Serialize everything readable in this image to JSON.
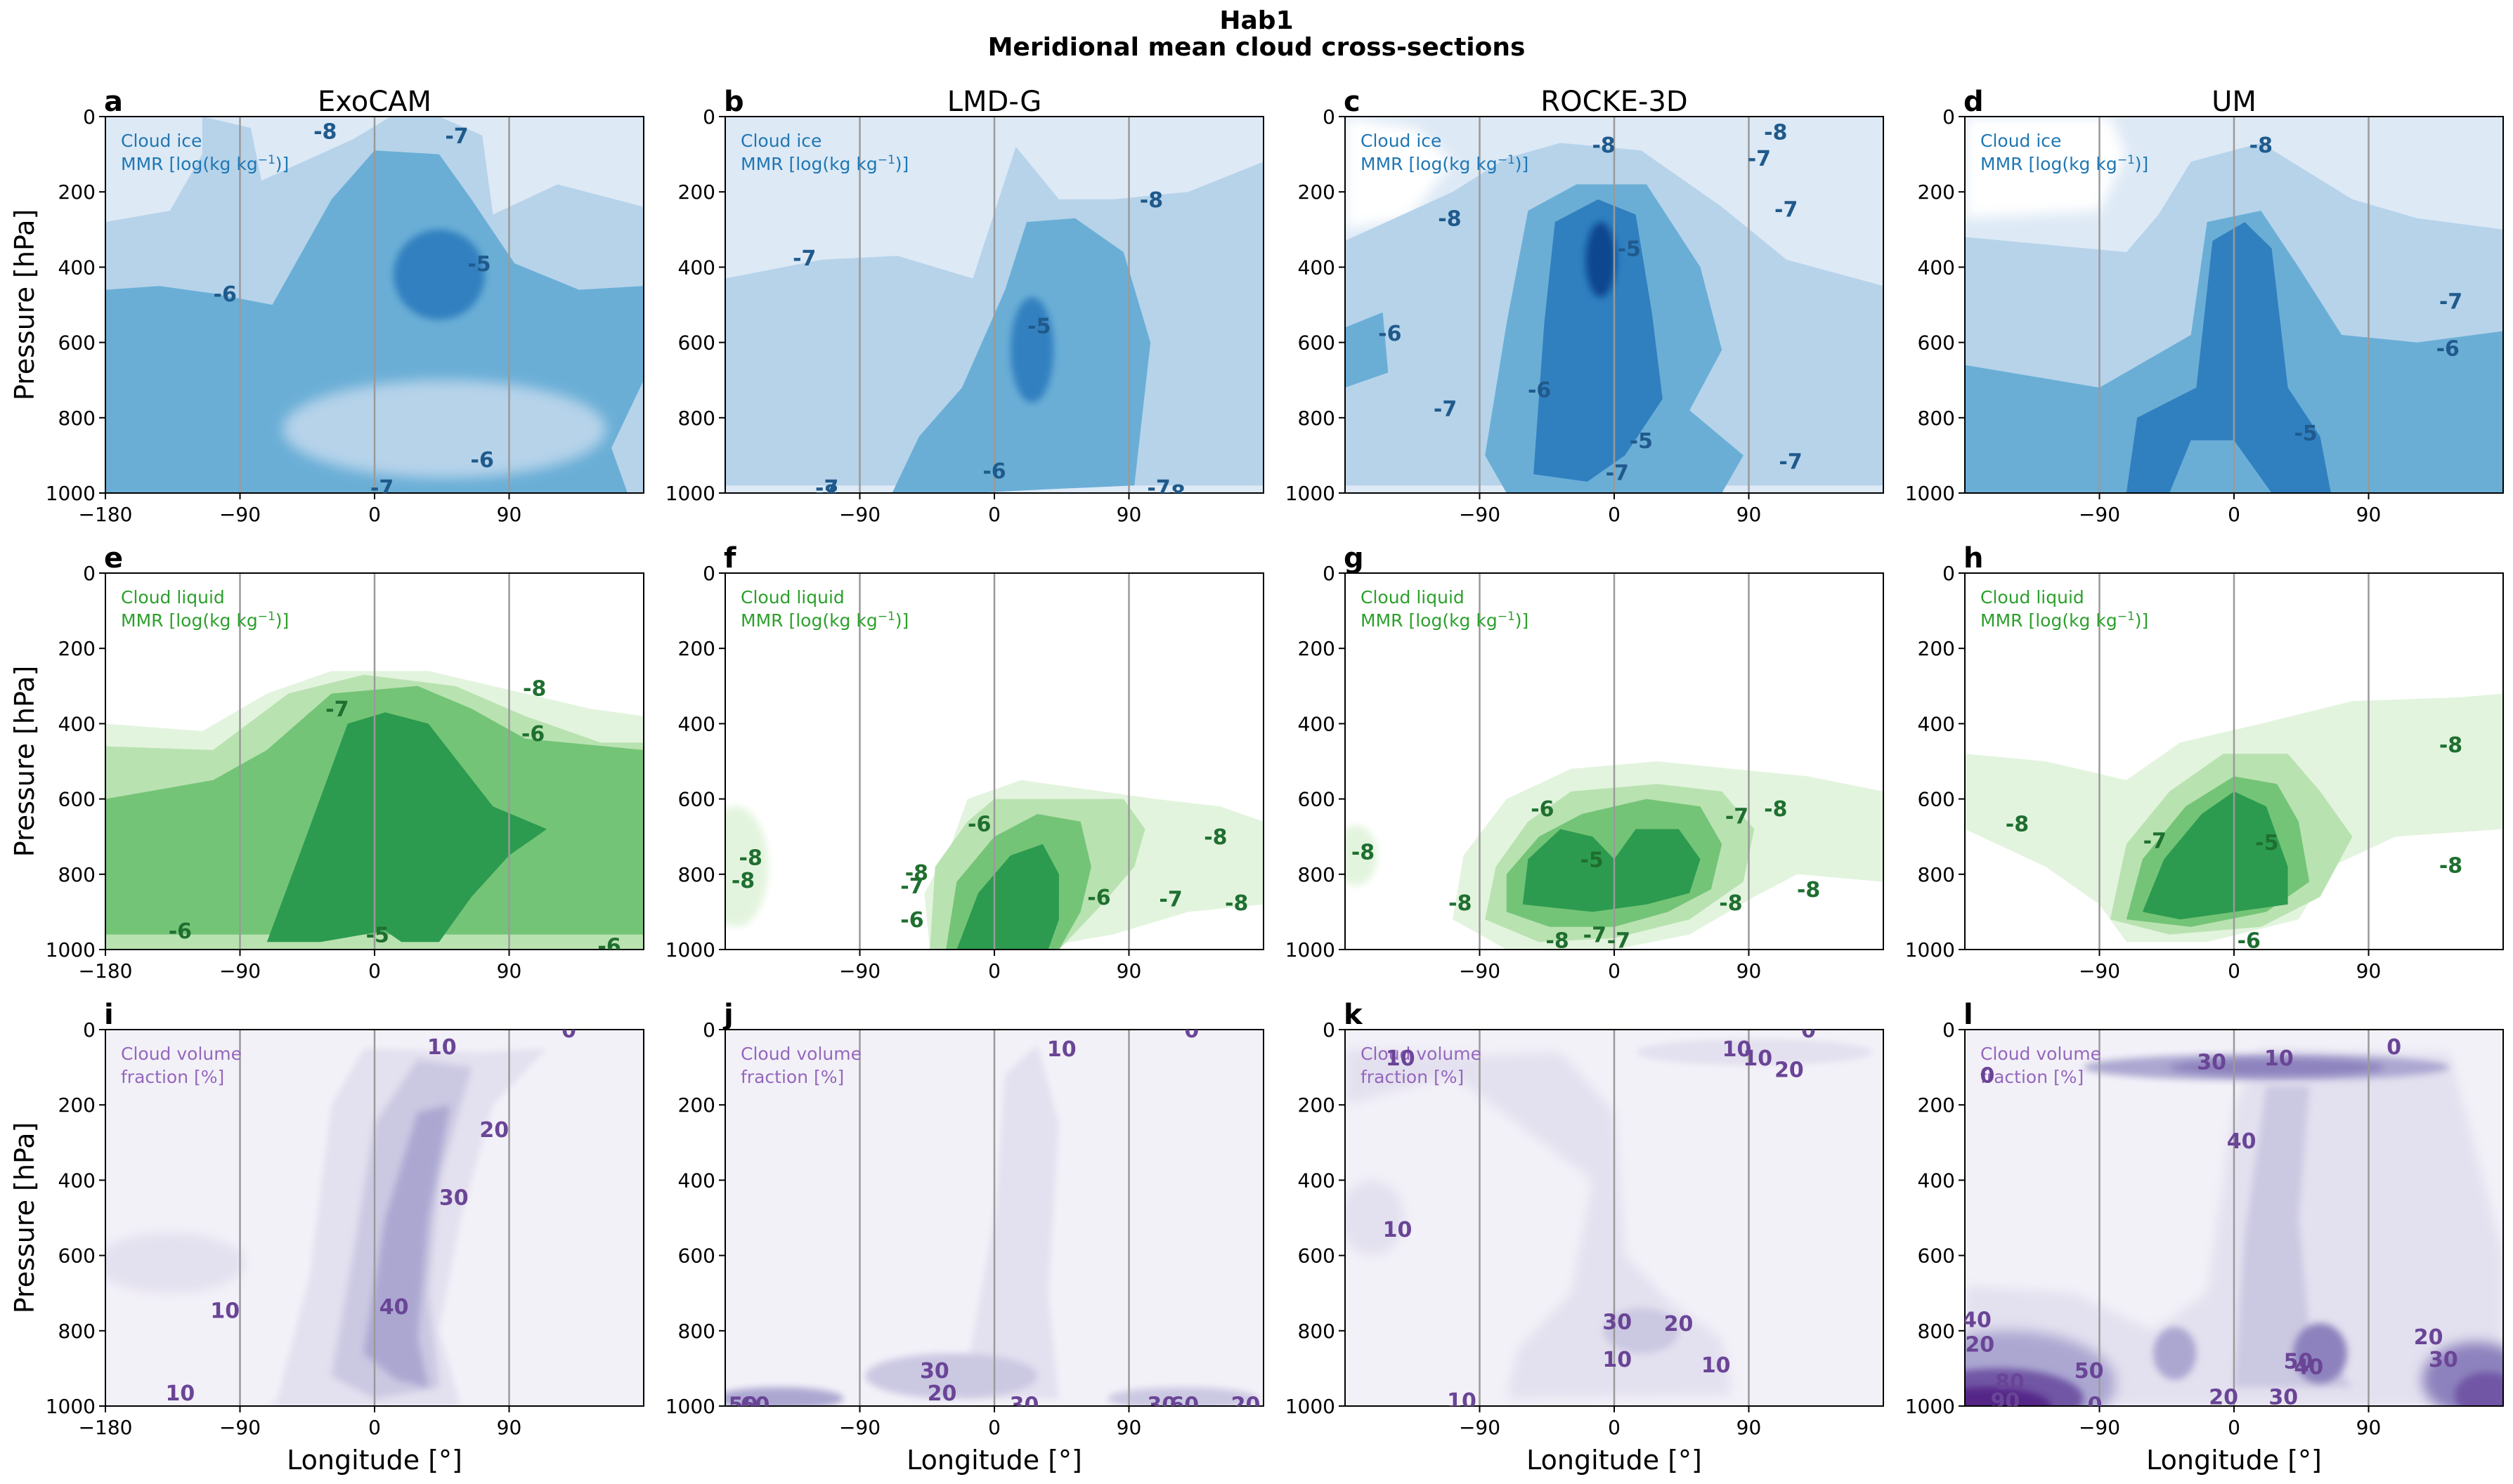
{
  "figure": {
    "title_line1": "Hab1",
    "title_line2": "Meridional mean cloud cross-sections"
  },
  "colors": {
    "ice": [
      "#dde9f5",
      "#b6d3ea",
      "#6aaed6",
      "#3080c0",
      "#08478f"
    ],
    "liquid": [
      "#e3f4de",
      "#b9e2b1",
      "#74c477",
      "#2c9b4f",
      "#0c6b2a"
    ],
    "cvf": [
      "#f3f1f8",
      "#e3e0ef",
      "#cbc8e2",
      "#aba7d1",
      "#8d82bd",
      "#7157a5",
      "#542788"
    ],
    "ice_text": "#1f77b4",
    "ice_label": "#205a8c",
    "liquid_text": "#2ca02c",
    "liquid_label": "#1f6f30",
    "cvf_text": "#9467bd",
    "cvf_label": "#6a4596"
  },
  "models": [
    "ExoCAM",
    "LMD-G",
    "ROCKE-3D",
    "UM"
  ],
  "panel_letters": [
    "a",
    "b",
    "c",
    "d",
    "e",
    "f",
    "g",
    "h",
    "i",
    "j",
    "k",
    "l"
  ],
  "variables": {
    "ice": {
      "label_line1": "Cloud ice",
      "label_line2_prefix": "MMR [log(kg kg",
      "label_sup": "−1",
      "label_line2_suffix": ")]"
    },
    "liquid": {
      "label_line1": "Cloud liquid",
      "label_line2_prefix": "MMR [log(kg kg",
      "label_sup": "−1",
      "label_line2_suffix": ")]"
    },
    "cvf": {
      "label_line1": "Cloud volume",
      "label_line2": "fraction [%]"
    }
  },
  "axes": {
    "ylabel": "Pressure [hPa]",
    "xlabel": "Longitude [°]",
    "ylim": [
      1000,
      0
    ],
    "xlim": [
      -180,
      180
    ],
    "yticks": [
      "0",
      "200",
      "400",
      "600",
      "800",
      "1000"
    ],
    "xticks_full": [
      "−180",
      "−90",
      "0",
      "90"
    ],
    "xticks_short": [
      "−90",
      "0",
      "90"
    ]
  },
  "chart_data": [
    {
      "panel": "a",
      "model": "ExoCAM",
      "variable": "cloud_ice_mmr",
      "type": "contour",
      "levels": [
        -8,
        -7,
        -6,
        -5,
        -4
      ],
      "contour_labels": [
        {
          "v": "-8",
          "lon": -33,
          "p": 38
        },
        {
          "v": "-7",
          "lon": 55,
          "p": 50
        },
        {
          "v": "-5",
          "lon": 70,
          "p": 390
        },
        {
          "v": "-6",
          "lon": -100,
          "p": 470
        },
        {
          "v": "-6",
          "lon": 72,
          "p": 910
        },
        {
          "v": "-7",
          "lon": 5,
          "p": 985
        }
      ]
    },
    {
      "panel": "b",
      "model": "LMD-G",
      "variable": "cloud_ice_mmr",
      "type": "contour",
      "levels": [
        -8,
        -7,
        -6,
        -5,
        -4
      ],
      "contour_labels": [
        {
          "v": "-8",
          "lon": 105,
          "p": 220
        },
        {
          "v": "-7",
          "lon": -127,
          "p": 375
        },
        {
          "v": "-5",
          "lon": 30,
          "p": 555
        },
        {
          "v": "-6",
          "lon": 0,
          "p": 940
        },
        {
          "v": "-7",
          "lon": -112,
          "p": 985
        },
        {
          "v": "-8",
          "lon": -112,
          "p": 998
        },
        {
          "v": "-7",
          "lon": 110,
          "p": 985
        },
        {
          "v": "-8",
          "lon": 120,
          "p": 998
        }
      ]
    },
    {
      "panel": "c",
      "model": "ROCKE-3D",
      "variable": "cloud_ice_mmr",
      "type": "contour",
      "levels": [
        -8,
        -7,
        -6,
        -5,
        -4
      ],
      "contour_labels": [
        {
          "v": "-8",
          "lon": 108,
          "p": 40
        },
        {
          "v": "-8",
          "lon": -7,
          "p": 75
        },
        {
          "v": "-7",
          "lon": 97,
          "p": 110
        },
        {
          "v": "-7",
          "lon": 115,
          "p": 245
        },
        {
          "v": "-8",
          "lon": -110,
          "p": 270
        },
        {
          "v": "-5",
          "lon": 10,
          "p": 350
        },
        {
          "v": "-6",
          "lon": -150,
          "p": 575
        },
        {
          "v": "-6",
          "lon": -50,
          "p": 725
        },
        {
          "v": "-7",
          "lon": -113,
          "p": 775
        },
        {
          "v": "-5",
          "lon": 18,
          "p": 860
        },
        {
          "v": "-7",
          "lon": 2,
          "p": 945
        },
        {
          "v": "-7",
          "lon": 118,
          "p": 915
        }
      ]
    },
    {
      "panel": "d",
      "model": "UM",
      "variable": "cloud_ice_mmr",
      "type": "contour",
      "levels": [
        -8,
        -7,
        -6,
        -5,
        -4
      ],
      "contour_labels": [
        {
          "v": "-8",
          "lon": 18,
          "p": 75
        },
        {
          "v": "-7",
          "lon": 145,
          "p": 490
        },
        {
          "v": "-6",
          "lon": 143,
          "p": 615
        },
        {
          "v": "-5",
          "lon": 48,
          "p": 840
        }
      ]
    },
    {
      "panel": "e",
      "model": "ExoCAM",
      "variable": "cloud_liquid_mmr",
      "type": "contour",
      "levels": [
        -8,
        -7,
        -6,
        -5,
        -4
      ],
      "contour_labels": [
        {
          "v": "-8",
          "lon": 107,
          "p": 305
        },
        {
          "v": "-7",
          "lon": -25,
          "p": 360
        },
        {
          "v": "-6",
          "lon": 106,
          "p": 425
        },
        {
          "v": "-6",
          "lon": -130,
          "p": 950
        },
        {
          "v": "-5",
          "lon": 2,
          "p": 960
        },
        {
          "v": "-6",
          "lon": 157,
          "p": 990
        }
      ]
    },
    {
      "panel": "f",
      "model": "LMD-G",
      "variable": "cloud_liquid_mmr",
      "type": "contour",
      "levels": [
        -8,
        -7,
        -6,
        -5,
        -4
      ],
      "contour_labels": [
        {
          "v": "-6",
          "lon": -10,
          "p": 665
        },
        {
          "v": "-8",
          "lon": 148,
          "p": 700
        },
        {
          "v": "-8",
          "lon": -163,
          "p": 755
        },
        {
          "v": "-8",
          "lon": -168,
          "p": 815
        },
        {
          "v": "-8",
          "lon": -52,
          "p": 795
        },
        {
          "v": "-7",
          "lon": -55,
          "p": 830
        },
        {
          "v": "-6",
          "lon": 70,
          "p": 860
        },
        {
          "v": "-7",
          "lon": 118,
          "p": 865
        },
        {
          "v": "-8",
          "lon": 162,
          "p": 875
        },
        {
          "v": "-6",
          "lon": -55,
          "p": 920
        }
      ]
    },
    {
      "panel": "g",
      "model": "ROCKE-3D",
      "variable": "cloud_liquid_mmr",
      "type": "contour",
      "levels": [
        -8,
        -7,
        -6,
        -5,
        -4
      ],
      "contour_labels": [
        {
          "v": "-8",
          "lon": 108,
          "p": 625
        },
        {
          "v": "-6",
          "lon": -48,
          "p": 625
        },
        {
          "v": "-7",
          "lon": 82,
          "p": 645
        },
        {
          "v": "-8",
          "lon": -168,
          "p": 740
        },
        {
          "v": "-5",
          "lon": -15,
          "p": 760
        },
        {
          "v": "-8",
          "lon": 130,
          "p": 840
        },
        {
          "v": "-8",
          "lon": -103,
          "p": 875
        },
        {
          "v": "-8",
          "lon": 78,
          "p": 875
        },
        {
          "v": "-8",
          "lon": -38,
          "p": 975
        },
        {
          "v": "-7",
          "lon": -13,
          "p": 960
        },
        {
          "v": "-7",
          "lon": 3,
          "p": 975
        }
      ]
    },
    {
      "panel": "h",
      "model": "UM",
      "variable": "cloud_liquid_mmr",
      "type": "contour",
      "levels": [
        -8,
        -7,
        -6,
        -5,
        -4
      ],
      "contour_labels": [
        {
          "v": "-8",
          "lon": 145,
          "p": 455
        },
        {
          "v": "-8",
          "lon": -145,
          "p": 665
        },
        {
          "v": "-7",
          "lon": -53,
          "p": 710
        },
        {
          "v": "-5",
          "lon": 22,
          "p": 715
        },
        {
          "v": "-8",
          "lon": 145,
          "p": 775
        },
        {
          "v": "-6",
          "lon": 10,
          "p": 975
        }
      ]
    },
    {
      "panel": "i",
      "model": "ExoCAM",
      "variable": "cloud_volume_fraction",
      "type": "contour",
      "levels": [
        0,
        10,
        20,
        30,
        40,
        50,
        60,
        70,
        80,
        90
      ],
      "contour_labels": [
        {
          "v": "10",
          "lon": 45,
          "p": 45
        },
        {
          "v": "0",
          "lon": 130,
          "p": 0
        },
        {
          "v": "20",
          "lon": 80,
          "p": 265
        },
        {
          "v": "30",
          "lon": 53,
          "p": 445
        },
        {
          "v": "40",
          "lon": 13,
          "p": 735
        },
        {
          "v": "10",
          "lon": -100,
          "p": 745
        },
        {
          "v": "10",
          "lon": -130,
          "p": 965
        }
      ]
    },
    {
      "panel": "j",
      "model": "LMD-G",
      "variable": "cloud_volume_fraction",
      "type": "contour",
      "levels": [
        0,
        10,
        20,
        30,
        40,
        50,
        60,
        70,
        80,
        90
      ],
      "contour_labels": [
        {
          "v": "10",
          "lon": 45,
          "p": 50
        },
        {
          "v": "0",
          "lon": 132,
          "p": 0
        },
        {
          "v": "30",
          "lon": -40,
          "p": 905
        },
        {
          "v": "20",
          "lon": -35,
          "p": 965
        },
        {
          "v": "30",
          "lon": 20,
          "p": 995
        },
        {
          "v": "30",
          "lon": 112,
          "p": 995
        },
        {
          "v": "60",
          "lon": 127,
          "p": 995
        },
        {
          "v": "20",
          "lon": 168,
          "p": 995
        },
        {
          "v": "50",
          "lon": -168,
          "p": 995
        },
        {
          "v": "60",
          "lon": -160,
          "p": 995
        }
      ]
    },
    {
      "panel": "k",
      "model": "ROCKE-3D",
      "variable": "cloud_volume_fraction",
      "type": "contour",
      "levels": [
        0,
        10,
        20,
        30,
        40,
        50,
        60,
        70,
        80,
        90
      ],
      "contour_labels": [
        {
          "v": "10",
          "lon": 82,
          "p": 50
        },
        {
          "v": "0",
          "lon": 130,
          "p": 0
        },
        {
          "v": "10",
          "lon": 96,
          "p": 75
        },
        {
          "v": "20",
          "lon": 117,
          "p": 105
        },
        {
          "v": "10",
          "lon": -143,
          "p": 75
        },
        {
          "v": "10",
          "lon": -145,
          "p": 530
        },
        {
          "v": "30",
          "lon": 2,
          "p": 775
        },
        {
          "v": "20",
          "lon": 43,
          "p": 780
        },
        {
          "v": "10",
          "lon": 68,
          "p": 890
        },
        {
          "v": "10",
          "lon": 2,
          "p": 875
        },
        {
          "v": "10",
          "lon": -102,
          "p": 985
        }
      ]
    },
    {
      "panel": "l",
      "model": "UM",
      "variable": "cloud_volume_fraction",
      "type": "contour",
      "levels": [
        0,
        10,
        20,
        30,
        40,
        50,
        60,
        70,
        80,
        90
      ],
      "contour_labels": [
        {
          "v": "0",
          "lon": 107,
          "p": 45
        },
        {
          "v": "30",
          "lon": -15,
          "p": 85
        },
        {
          "v": "10",
          "lon": 30,
          "p": 75
        },
        {
          "v": "0",
          "lon": -165,
          "p": 120
        },
        {
          "v": "40",
          "lon": 5,
          "p": 295
        },
        {
          "v": "40",
          "lon": -172,
          "p": 770
        },
        {
          "v": "20",
          "lon": -170,
          "p": 835
        },
        {
          "v": "50",
          "lon": -97,
          "p": 905
        },
        {
          "v": "80",
          "lon": -150,
          "p": 935
        },
        {
          "v": "90",
          "lon": -153,
          "p": 985
        },
        {
          "v": "0",
          "lon": -93,
          "p": 995
        },
        {
          "v": "50",
          "lon": 43,
          "p": 880
        },
        {
          "v": "40",
          "lon": 50,
          "p": 895
        },
        {
          "v": "20",
          "lon": -7,
          "p": 975
        },
        {
          "v": "30",
          "lon": 33,
          "p": 975
        },
        {
          "v": "20",
          "lon": 130,
          "p": 815
        },
        {
          "v": "30",
          "lon": 140,
          "p": 875
        }
      ]
    }
  ]
}
